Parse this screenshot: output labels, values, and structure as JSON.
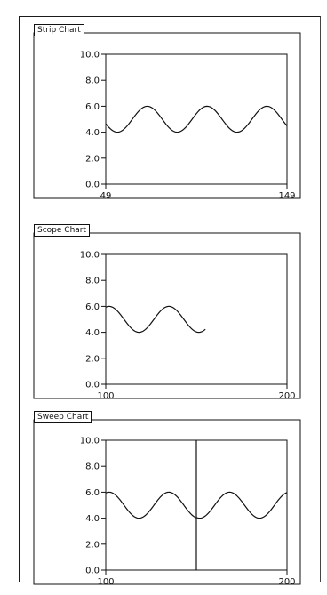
{
  "charts": [
    {
      "id": "strip",
      "title": "Strip Chart",
      "y_ticks": [
        "10.0",
        "8.0",
        "6.0",
        "4.0",
        "2.0",
        "0.0"
      ],
      "x_ticks": [
        "49",
        "149"
      ]
    },
    {
      "id": "scope",
      "title": "Scope Chart",
      "y_ticks": [
        "10.0",
        "8.0",
        "6.0",
        "4.0",
        "2.0",
        "0.0"
      ],
      "x_ticks": [
        "100",
        "200"
      ]
    },
    {
      "id": "sweep",
      "title": "Sweep Chart",
      "y_ticks": [
        "10.0",
        "8.0",
        "6.0",
        "4.0",
        "2.0",
        "0.0"
      ],
      "x_ticks": [
        "100",
        "200"
      ]
    }
  ],
  "chart_data": [
    {
      "type": "line",
      "title": "Strip Chart",
      "xlim": [
        49,
        149
      ],
      "ylim": [
        0,
        10
      ],
      "series": [
        {
          "x_start": 49,
          "x_end": 149,
          "mean": 5.0,
          "amplitude": 1.0,
          "period": 33,
          "phase_deg": 200
        }
      ]
    },
    {
      "type": "line",
      "title": "Scope Chart",
      "xlim": [
        100,
        200
      ],
      "ylim": [
        0,
        10
      ],
      "series": [
        {
          "x_start": 100,
          "x_end": 155,
          "mean": 5.0,
          "amplitude": 1.0,
          "period": 33,
          "phase_deg": 70
        }
      ]
    },
    {
      "type": "line",
      "title": "Sweep Chart",
      "xlim": [
        100,
        200
      ],
      "ylim": [
        0,
        10
      ],
      "sweep_x": 150,
      "series": [
        {
          "x_start": 100,
          "x_end": 150,
          "mean": 5.0,
          "amplitude": 1.0,
          "period": 33,
          "phase_deg": 70
        },
        {
          "x_start": 150,
          "x_end": 200,
          "mean": 5.0,
          "amplitude": 1.0,
          "period": 33,
          "phase_deg": 250
        }
      ]
    }
  ]
}
